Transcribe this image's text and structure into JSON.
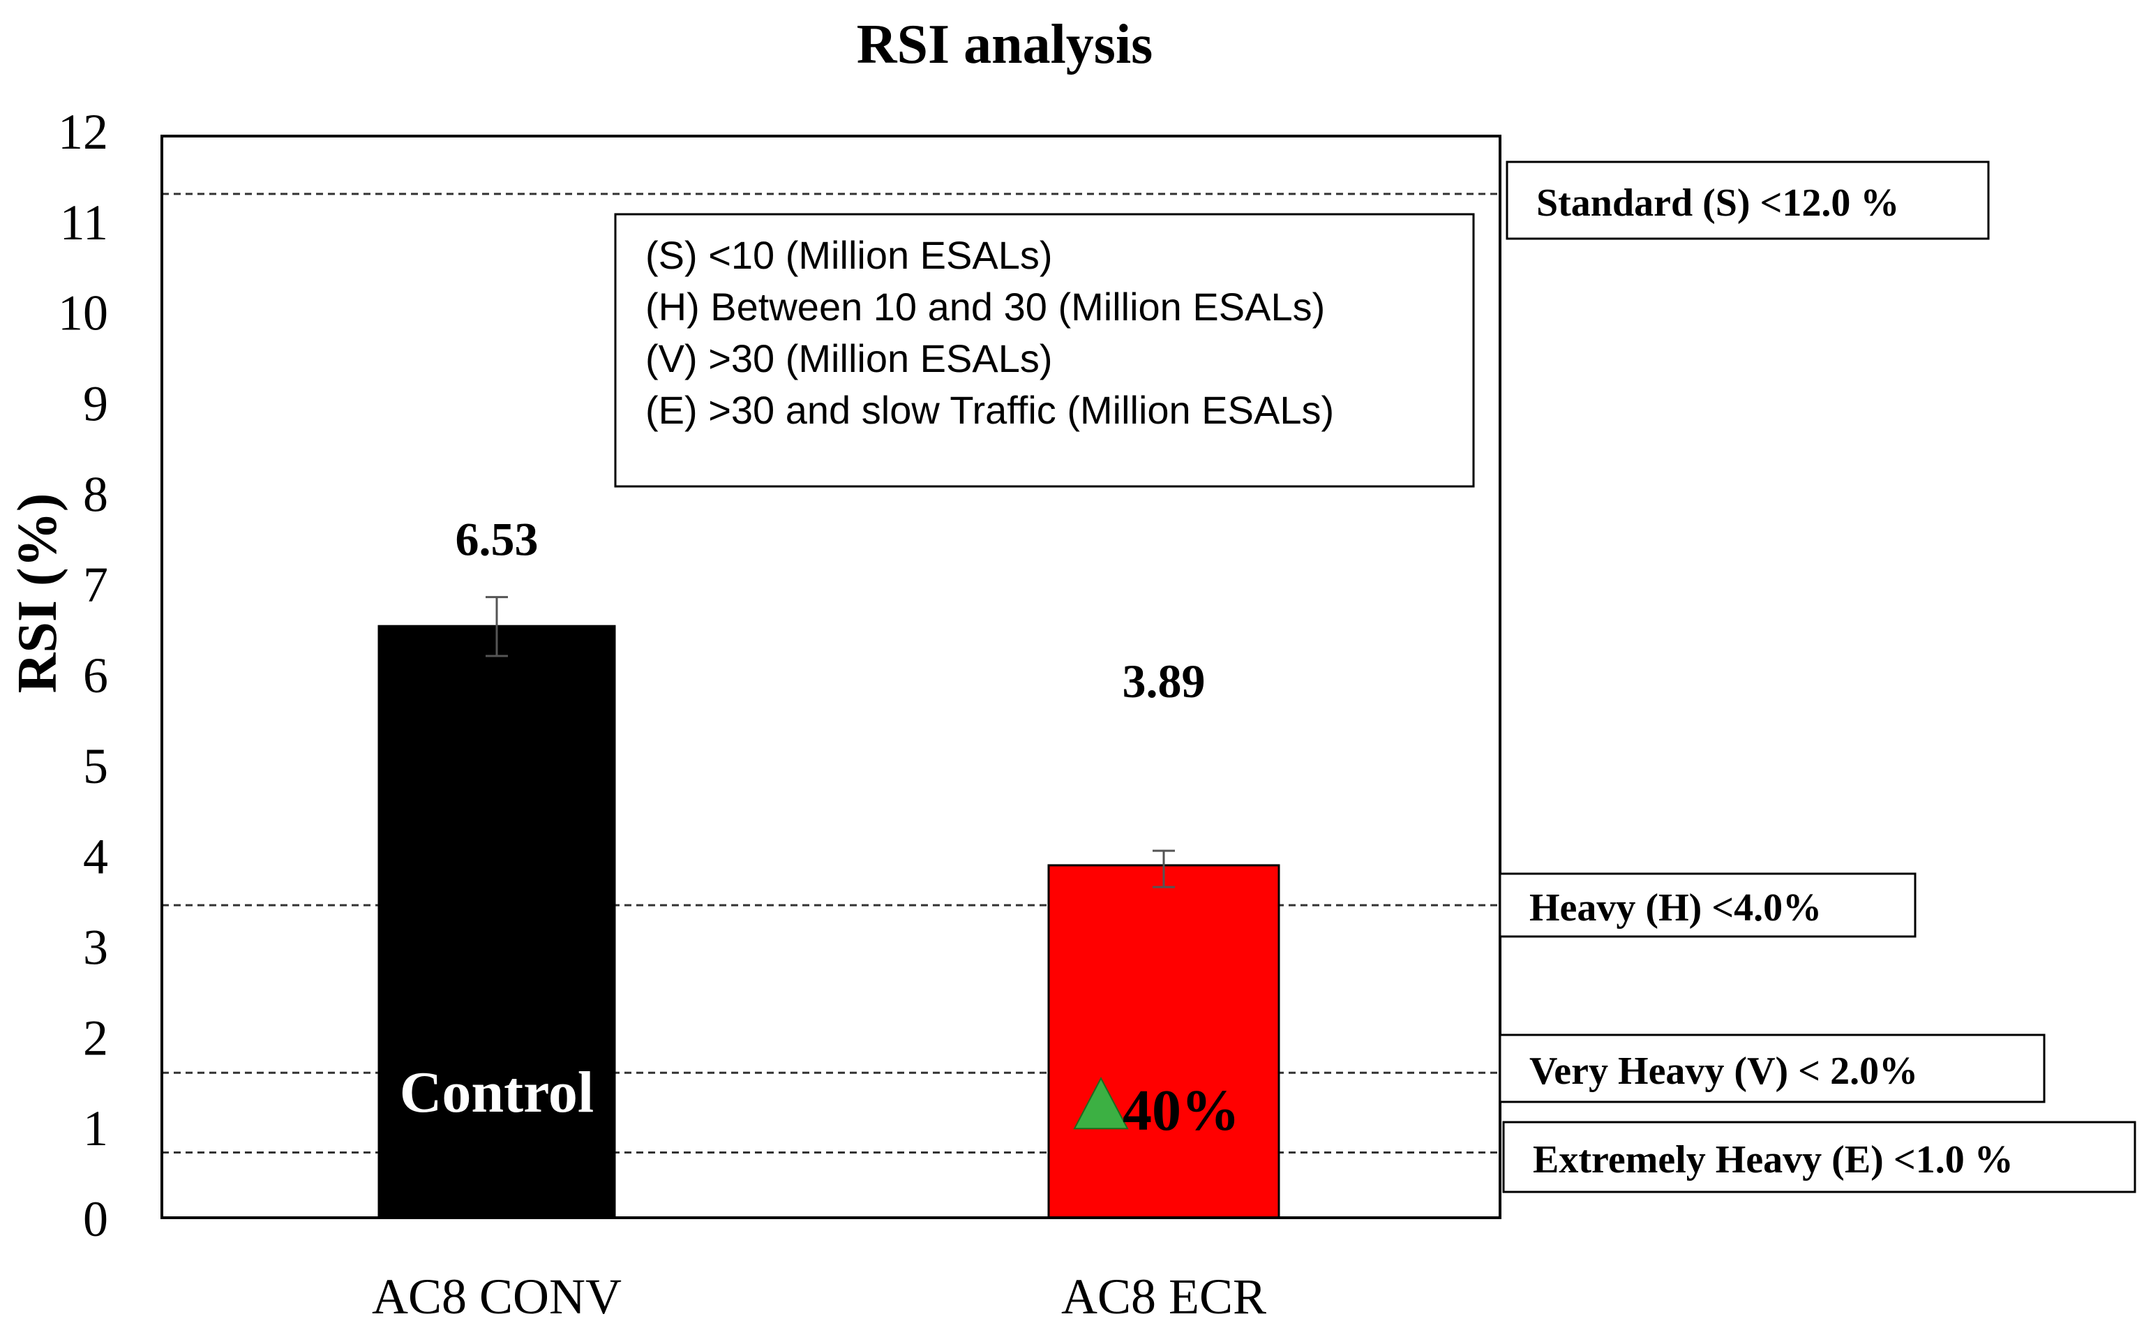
{
  "chart_data": {
    "type": "bar",
    "title": "RSI analysis",
    "xlabel": "",
    "ylabel": "RSI (%)",
    "ylim": [
      0,
      12
    ],
    "yticks": [
      "0",
      "1",
      "2",
      "3",
      "4",
      "5",
      "6",
      "7",
      "8",
      "9",
      "10",
      "11",
      "12"
    ],
    "categories": [
      "AC8 CONV",
      "AC8 ECR"
    ],
    "values": [
      6.53,
      3.89
    ],
    "value_labels": [
      "6.53",
      "3.89"
    ],
    "error_bars": [
      {
        "low": 6.2,
        "high": 6.85
      },
      {
        "low": 3.65,
        "high": 4.05
      }
    ],
    "bar_colors": [
      "#000000",
      "#ff0000"
    ],
    "bar_annotations": [
      {
        "text": "Control",
        "color": "#ffffff",
        "y": 1.4
      },
      {
        "text": "40%",
        "color": "#000000",
        "y": 1.2,
        "marker": "up-triangle",
        "marker_color": "#3cb043"
      }
    ],
    "thresholds": [
      {
        "label": "Standard (S) <12.0 %",
        "value": 11.3
      },
      {
        "label": "Heavy (H) <4.0%",
        "value": 3.45
      },
      {
        "label": "Very Heavy (V) < 2.0%",
        "value": 1.6
      },
      {
        "label": "Extremely Heavy (E) <1.0 %",
        "value": 0.72
      }
    ],
    "legend_lines": [
      "(S) <10 (Million ESALs)",
      "(H) Between 10 and 30 (Million ESALs)",
      "(V) >30 (Million ESALs)",
      "(E) >30 and slow Traffic (Million ESALs)"
    ],
    "legend_position": "top-center"
  },
  "colors": {
    "axis": "#000000",
    "threshold_line": "#333333",
    "triangle": "#3cb043",
    "background": "#ffffff"
  }
}
